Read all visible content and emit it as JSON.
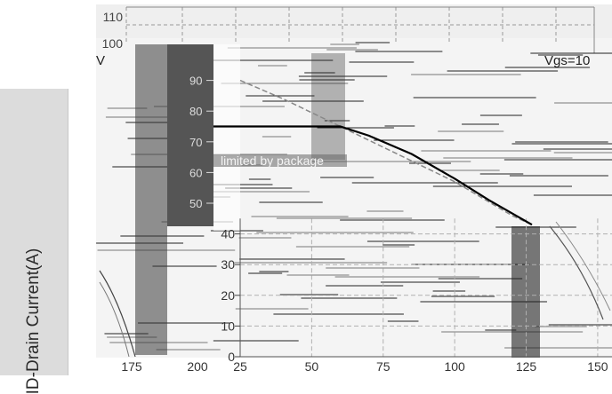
{
  "chart_data": {
    "type": "line",
    "ylabel": "ID-Drain Current(A)",
    "x_ticks": [
      "25",
      "50",
      "75",
      "100",
      "125",
      "150"
    ],
    "y_ticks_main": [
      "0",
      "10",
      "20",
      "30",
      "40",
      "50",
      "60",
      "70",
      "80",
      "90"
    ],
    "y_ticks_back": [
      "110",
      "100"
    ],
    "x_ticks_side": [
      "175",
      "200"
    ],
    "xlim": [
      25,
      155
    ],
    "ylim": [
      0,
      95
    ],
    "grid": true,
    "annotations": {
      "limited": "limited by package",
      "vgs": "Vgs=10",
      "vgs_left": "V"
    },
    "series": [
      {
        "x": [
          25,
          60,
          70,
          85,
          100,
          112,
          127
        ],
        "y": [
          75,
          75,
          72,
          66,
          58,
          51,
          43
        ]
      },
      {
        "x": [
          25,
          40,
          60,
          80,
          100,
          120,
          127
        ],
        "y": [
          90,
          84,
          75,
          66,
          57,
          46,
          43
        ]
      }
    ],
    "colors": {
      "curve": "#000000",
      "dash": "#888888",
      "grid": "#b0b0b0",
      "block": "#555555"
    }
  }
}
